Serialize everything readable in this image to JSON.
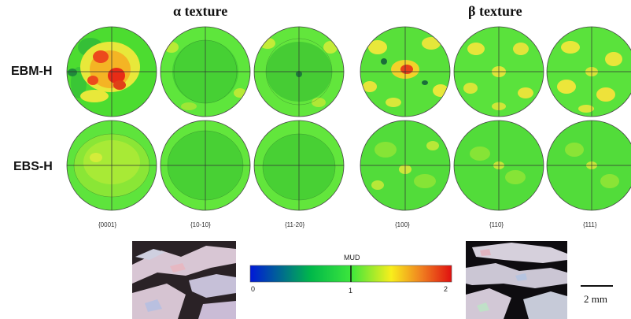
{
  "groups": {
    "alpha": "α texture",
    "beta": "β texture"
  },
  "rows": [
    "EBM-H",
    "EBS-H"
  ],
  "columns": [
    "{0001}",
    "{10-10}",
    "{11-20}",
    "{100}",
    "{110}",
    "{111}"
  ],
  "colorbar": {
    "title": "MUD",
    "ticks": [
      "0",
      "1",
      "2"
    ],
    "min": 0,
    "max": 2,
    "colors": [
      "#0018d8",
      "#00b84a",
      "#3ce63c",
      "#f8ee1c",
      "#f08020",
      "#e01010"
    ]
  },
  "scale_bar": {
    "label": "2 mm"
  }
}
